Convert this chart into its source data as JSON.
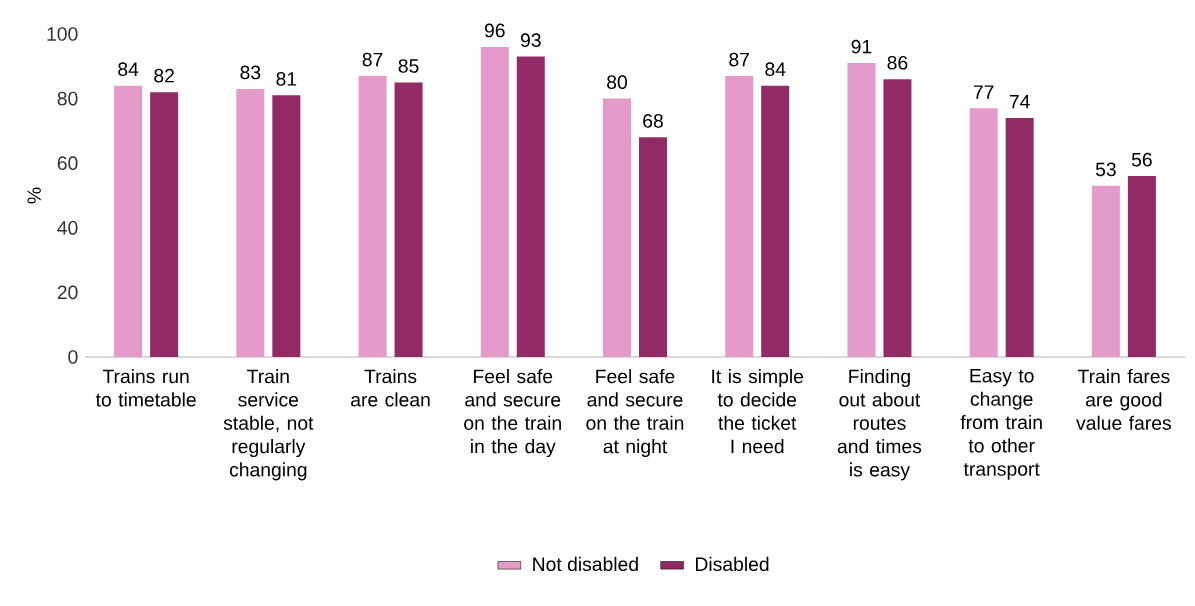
{
  "chart_data": {
    "type": "bar",
    "ylabel": "%",
    "categories": [
      "Trains run to timetable",
      "Train service stable, not regularly changing",
      "Trains are clean",
      "Feel safe and secure on the train in the day",
      "Feel safe and secure on the train at night",
      "It is simple to decide the ticket I need",
      "Finding out about routes and times is easy",
      "Easy to change from train to other transport",
      "Train fares are good value fares"
    ],
    "series": [
      {
        "name": "Not disabled",
        "color": "#e59bc9",
        "values": [
          84,
          83,
          87,
          96,
          80,
          87,
          91,
          77,
          53
        ]
      },
      {
        "name": "Disabled",
        "color": "#922a66",
        "values": [
          82,
          81,
          85,
          93,
          68,
          84,
          86,
          74,
          56
        ]
      }
    ],
    "ylim": [
      0,
      100
    ],
    "yticks": [
      0,
      20,
      40,
      60,
      80,
      100
    ],
    "data_labels": true,
    "legend": "bottom",
    "grid": false
  }
}
